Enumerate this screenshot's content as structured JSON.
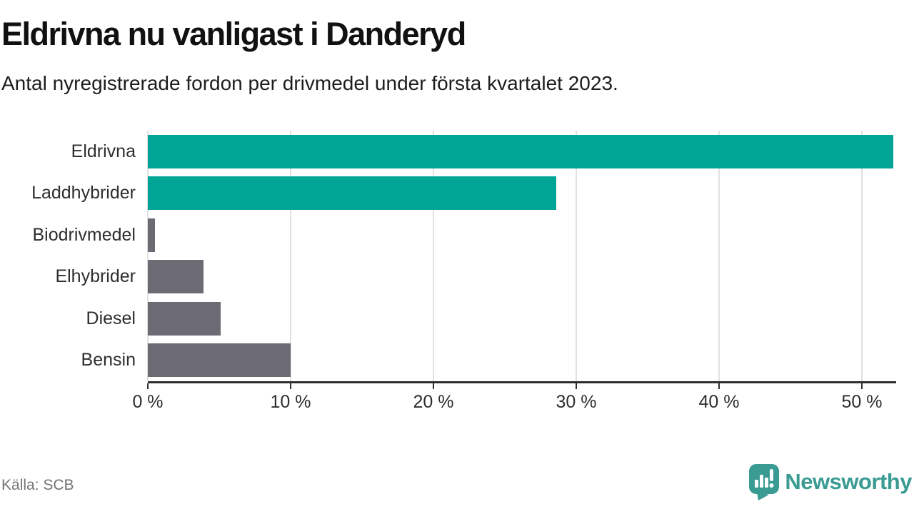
{
  "header": {
    "title": "Eldrivna nu vanligast i Danderyd",
    "subtitle": "Antal nyregistrerade fordon per drivmedel under första kvartalet 2023."
  },
  "chart_data": {
    "type": "bar",
    "orientation": "horizontal",
    "title": "Eldrivna nu vanligast i Danderyd",
    "subtitle": "Antal nyregistrerade fordon per drivmedel under första kvartalet 2023.",
    "categories": [
      "Eldrivna",
      "Laddhybrider",
      "Biodrivmedel",
      "Elhybrider",
      "Diesel",
      "Bensin"
    ],
    "values": [
      52.2,
      28.6,
      0.5,
      3.9,
      5.1,
      10.0
    ],
    "unit": "%",
    "bar_colors": [
      "#00a596",
      "#00a596",
      "#6c6b74",
      "#6c6b74",
      "#6c6b74",
      "#6c6b74"
    ],
    "xlabel": "",
    "ylabel": "",
    "xlim": [
      0,
      52.3
    ],
    "xticks": [
      0,
      10,
      20,
      30,
      40,
      50
    ],
    "xtick_labels": [
      "0 %",
      "10 %",
      "20 %",
      "30 %",
      "40 %",
      "50 %"
    ],
    "grid": true,
    "legend_position": "none"
  },
  "footer": {
    "source": "Källa: SCB",
    "brand": "Newsworthy"
  },
  "colors": {
    "accent_teal": "#00a596",
    "bar_gray": "#6c6b74",
    "brand_teal": "#3a9b93",
    "gridline": "#e1e1e1",
    "axis": "#2f2f2f",
    "title_text": "#111111",
    "muted_text": "#737373"
  }
}
